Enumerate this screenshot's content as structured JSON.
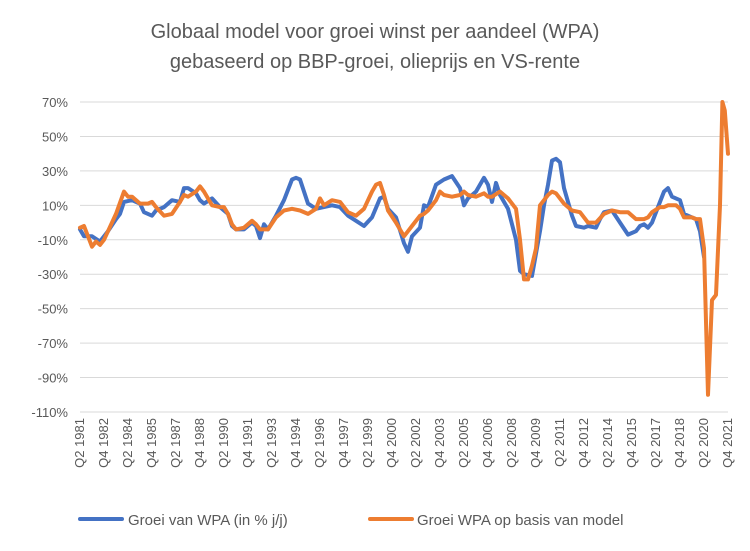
{
  "chart_data": {
    "type": "line",
    "title": "Globaal model voor groei winst per aandeel (WPA)",
    "subtitle": "gebaseerd op BBP-groei, olieprijs en VS-rente",
    "ylim": [
      -110,
      70
    ],
    "y_ticks": [
      70,
      50,
      30,
      10,
      -10,
      -30,
      -50,
      -70,
      -90,
      -110
    ],
    "y_tick_labels": [
      "70%",
      "50%",
      "30%",
      "10%",
      "-10%",
      "-30%",
      "-50%",
      "-70%",
      "-90%",
      "-110%"
    ],
    "x_range": [
      1981.25,
      2021.75
    ],
    "x_ticks": [
      {
        "x": 1981.25,
        "label": "Q2 1981"
      },
      {
        "x": 1982.75,
        "label": "Q4 1982"
      },
      {
        "x": 1984.25,
        "label": "Q2 1984"
      },
      {
        "x": 1985.75,
        "label": "Q4 1985"
      },
      {
        "x": 1987.25,
        "label": "Q2 1987"
      },
      {
        "x": 1988.75,
        "label": "Q4 1988"
      },
      {
        "x": 1990.25,
        "label": "Q2 1990"
      },
      {
        "x": 1991.75,
        "label": "Q4 1991"
      },
      {
        "x": 1993.25,
        "label": "Q2 1993"
      },
      {
        "x": 1994.75,
        "label": "Q4 1994"
      },
      {
        "x": 1996.25,
        "label": "Q2 1996"
      },
      {
        "x": 1997.75,
        "label": "Q4 1997"
      },
      {
        "x": 1999.25,
        "label": "Q2 1999"
      },
      {
        "x": 2000.75,
        "label": "Q4 2000"
      },
      {
        "x": 2002.25,
        "label": "Q2 2002"
      },
      {
        "x": 2003.75,
        "label": "Q4 2003"
      },
      {
        "x": 2005.25,
        "label": "Q2 2005"
      },
      {
        "x": 2006.75,
        "label": "Q4 2006"
      },
      {
        "x": 2008.25,
        "label": "Q2 2008"
      },
      {
        "x": 2009.75,
        "label": "Q4 2009"
      },
      {
        "x": 2011.25,
        "label": "Q2 2011"
      },
      {
        "x": 2012.75,
        "label": "Q4 2012"
      },
      {
        "x": 2014.25,
        "label": "Q2 2014"
      },
      {
        "x": 2015.75,
        "label": "Q4 2015"
      },
      {
        "x": 2017.25,
        "label": "Q2 2017"
      },
      {
        "x": 2018.75,
        "label": "Q4 2018"
      },
      {
        "x": 2020.25,
        "label": "Q2 2020"
      },
      {
        "x": 2021.75,
        "label": "Q4 2021"
      }
    ],
    "grid": true,
    "legend_position": "bottom",
    "series": [
      {
        "name": "Groei van WPA (in % j/j)",
        "color": "#4472C4",
        "points": [
          [
            1981.25,
            -4
          ],
          [
            1981.5,
            -8
          ],
          [
            1982.0,
            -8
          ],
          [
            1982.5,
            -11
          ],
          [
            1983.0,
            -5
          ],
          [
            1983.5,
            2
          ],
          [
            1983.75,
            5
          ],
          [
            1984.0,
            12
          ],
          [
            1984.5,
            13
          ],
          [
            1985.0,
            11
          ],
          [
            1985.25,
            6
          ],
          [
            1985.75,
            4
          ],
          [
            1986.0,
            7
          ],
          [
            1986.5,
            9
          ],
          [
            1987.0,
            13
          ],
          [
            1987.5,
            12
          ],
          [
            1987.75,
            20
          ],
          [
            1988.0,
            20
          ],
          [
            1988.5,
            17
          ],
          [
            1988.75,
            13
          ],
          [
            1989.0,
            11
          ],
          [
            1989.5,
            14
          ],
          [
            1990.0,
            9
          ],
          [
            1990.5,
            5
          ],
          [
            1990.75,
            -2
          ],
          [
            1991.0,
            -4
          ],
          [
            1991.5,
            -4
          ],
          [
            1992.0,
            0
          ],
          [
            1992.25,
            -2
          ],
          [
            1992.5,
            -9
          ],
          [
            1992.75,
            -1
          ],
          [
            1993.0,
            -4
          ],
          [
            1993.5,
            4
          ],
          [
            1994.0,
            13
          ],
          [
            1994.5,
            25
          ],
          [
            1994.75,
            26
          ],
          [
            1995.0,
            25
          ],
          [
            1995.5,
            11
          ],
          [
            1996.0,
            8
          ],
          [
            1996.5,
            9
          ],
          [
            1997.0,
            10
          ],
          [
            1997.5,
            9
          ],
          [
            1998.0,
            4
          ],
          [
            1998.5,
            1
          ],
          [
            1999.0,
            -2
          ],
          [
            1999.5,
            3
          ],
          [
            2000.0,
            14
          ],
          [
            2000.25,
            15
          ],
          [
            2000.5,
            8
          ],
          [
            2001.0,
            3
          ],
          [
            2001.5,
            -12
          ],
          [
            2001.75,
            -17
          ],
          [
            2002.0,
            -8
          ],
          [
            2002.5,
            -3
          ],
          [
            2002.75,
            10
          ],
          [
            2003.0,
            9
          ],
          [
            2003.5,
            22
          ],
          [
            2004.0,
            25
          ],
          [
            2004.5,
            27
          ],
          [
            2005.0,
            20
          ],
          [
            2005.25,
            10
          ],
          [
            2005.5,
            14
          ],
          [
            2006.0,
            18
          ],
          [
            2006.5,
            26
          ],
          [
            2006.75,
            22
          ],
          [
            2007.0,
            12
          ],
          [
            2007.25,
            23
          ],
          [
            2007.5,
            16
          ],
          [
            2008.0,
            8
          ],
          [
            2008.5,
            -10
          ],
          [
            2008.75,
            -28
          ],
          [
            2009.0,
            -30
          ],
          [
            2009.5,
            -31
          ],
          [
            2010.0,
            -5
          ],
          [
            2010.25,
            10
          ],
          [
            2010.5,
            22
          ],
          [
            2010.75,
            36
          ],
          [
            2011.0,
            37
          ],
          [
            2011.25,
            35
          ],
          [
            2011.5,
            20
          ],
          [
            2012.0,
            4
          ],
          [
            2012.25,
            -2
          ],
          [
            2012.75,
            -3
          ],
          [
            2013.0,
            -2
          ],
          [
            2013.5,
            -3
          ],
          [
            2013.75,
            2
          ],
          [
            2014.0,
            6
          ],
          [
            2014.5,
            7
          ],
          [
            2015.0,
            0
          ],
          [
            2015.5,
            -7
          ],
          [
            2016.0,
            -5
          ],
          [
            2016.25,
            -2
          ],
          [
            2016.5,
            -1
          ],
          [
            2016.75,
            -3
          ],
          [
            2017.0,
            0
          ],
          [
            2017.5,
            12
          ],
          [
            2017.75,
            18
          ],
          [
            2018.0,
            20
          ],
          [
            2018.25,
            15
          ],
          [
            2018.75,
            13
          ],
          [
            2019.0,
            5
          ],
          [
            2019.5,
            3
          ],
          [
            2019.75,
            2
          ],
          [
            2020.0,
            -5
          ],
          [
            2020.25,
            -20
          ]
        ]
      },
      {
        "name": "Groei WPA op basis van model",
        "color": "#ED7D31",
        "points": [
          [
            1981.25,
            -3
          ],
          [
            1981.5,
            -2
          ],
          [
            1981.75,
            -8
          ],
          [
            1982.0,
            -14
          ],
          [
            1982.25,
            -11
          ],
          [
            1982.5,
            -13
          ],
          [
            1982.75,
            -10
          ],
          [
            1983.0,
            -5
          ],
          [
            1983.5,
            5
          ],
          [
            1984.0,
            18
          ],
          [
            1984.25,
            15
          ],
          [
            1984.5,
            15
          ],
          [
            1985.0,
            11
          ],
          [
            1985.5,
            11
          ],
          [
            1985.75,
            12
          ],
          [
            1986.0,
            9
          ],
          [
            1986.5,
            4
          ],
          [
            1987.0,
            5
          ],
          [
            1987.5,
            12
          ],
          [
            1987.75,
            16
          ],
          [
            1988.0,
            15
          ],
          [
            1988.5,
            18
          ],
          [
            1988.75,
            21
          ],
          [
            1989.0,
            18
          ],
          [
            1989.5,
            10
          ],
          [
            1990.0,
            9
          ],
          [
            1990.25,
            9
          ],
          [
            1990.5,
            5
          ],
          [
            1990.75,
            -1
          ],
          [
            1991.0,
            -4
          ],
          [
            1991.5,
            -3
          ],
          [
            1992.0,
            1
          ],
          [
            1992.25,
            -1
          ],
          [
            1992.5,
            -4
          ],
          [
            1993.0,
            -4
          ],
          [
            1993.5,
            3
          ],
          [
            1994.0,
            7
          ],
          [
            1994.5,
            8
          ],
          [
            1995.0,
            7
          ],
          [
            1995.5,
            5
          ],
          [
            1996.0,
            8
          ],
          [
            1996.25,
            14
          ],
          [
            1996.5,
            10
          ],
          [
            1997.0,
            13
          ],
          [
            1997.5,
            12
          ],
          [
            1998.0,
            6
          ],
          [
            1998.5,
            4
          ],
          [
            1999.0,
            8
          ],
          [
            1999.5,
            18
          ],
          [
            1999.75,
            22
          ],
          [
            2000.0,
            23
          ],
          [
            2000.25,
            16
          ],
          [
            2000.5,
            7
          ],
          [
            2001.0,
            0
          ],
          [
            2001.5,
            -8
          ],
          [
            2001.75,
            -5
          ],
          [
            2002.0,
            -2
          ],
          [
            2002.5,
            4
          ],
          [
            2002.75,
            5
          ],
          [
            2003.0,
            7
          ],
          [
            2003.5,
            13
          ],
          [
            2003.75,
            18
          ],
          [
            2004.0,
            16
          ],
          [
            2004.5,
            15
          ],
          [
            2005.0,
            16
          ],
          [
            2005.25,
            18
          ],
          [
            2005.5,
            16
          ],
          [
            2006.0,
            15
          ],
          [
            2006.5,
            17
          ],
          [
            2006.75,
            15
          ],
          [
            2007.0,
            15
          ],
          [
            2007.5,
            18
          ],
          [
            2008.0,
            14
          ],
          [
            2008.5,
            8
          ],
          [
            2008.75,
            -10
          ],
          [
            2009.0,
            -33
          ],
          [
            2009.25,
            -33
          ],
          [
            2009.5,
            -25
          ],
          [
            2009.75,
            -15
          ],
          [
            2010.0,
            10
          ],
          [
            2010.5,
            16
          ],
          [
            2010.75,
            18
          ],
          [
            2011.0,
            17
          ],
          [
            2011.5,
            11
          ],
          [
            2012.0,
            7
          ],
          [
            2012.5,
            6
          ],
          [
            2013.0,
            0
          ],
          [
            2013.5,
            0
          ],
          [
            2014.0,
            5
          ],
          [
            2014.5,
            7
          ],
          [
            2015.0,
            6
          ],
          [
            2015.5,
            6
          ],
          [
            2016.0,
            2
          ],
          [
            2016.5,
            2
          ],
          [
            2016.75,
            3
          ],
          [
            2017.0,
            6
          ],
          [
            2017.5,
            9
          ],
          [
            2017.75,
            9
          ],
          [
            2018.0,
            10
          ],
          [
            2018.5,
            10
          ],
          [
            2018.75,
            8
          ],
          [
            2019.0,
            3
          ],
          [
            2019.5,
            3
          ],
          [
            2019.75,
            2
          ],
          [
            2020.0,
            2
          ],
          [
            2020.25,
            -15
          ],
          [
            2020.5,
            -100
          ],
          [
            2020.75,
            -45
          ],
          [
            2021.0,
            -42
          ],
          [
            2021.25,
            10
          ],
          [
            2021.4,
            70
          ],
          [
            2021.55,
            65
          ],
          [
            2021.75,
            40
          ]
        ]
      }
    ]
  }
}
